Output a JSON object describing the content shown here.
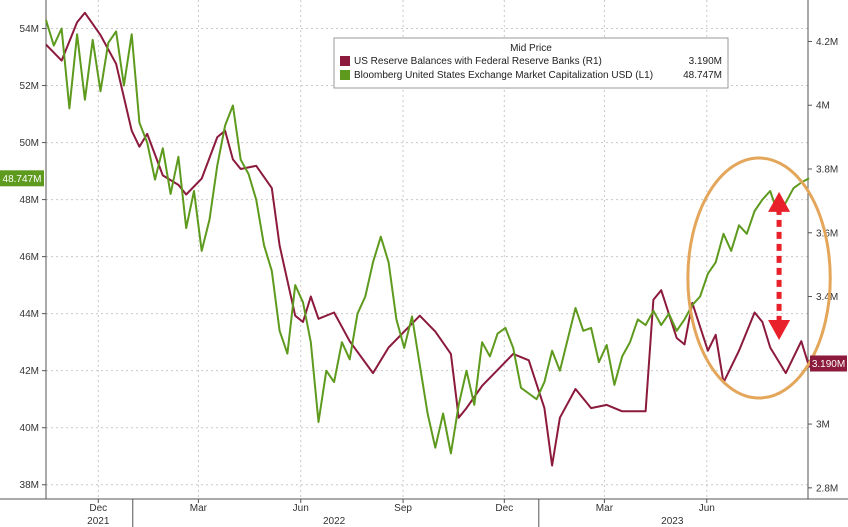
{
  "chart_data": {
    "type": "line",
    "grid": true,
    "legend_position": "top-right",
    "legend": {
      "title": "Mid Price",
      "entries": [
        {
          "label": "US Reserve Balances with Federal Reserve Banks  (R1)",
          "value_label": "3.190M",
          "color": "#8b1a3c"
        },
        {
          "label": "Bloomberg United States Exchange Market Capitalization USD  (L1)",
          "value_label": "48.747M",
          "color": "#5e9a1e"
        }
      ]
    },
    "left_axis": {
      "range": [
        37.5,
        55.0
      ],
      "ticks": [
        38,
        40,
        42,
        44,
        46,
        48,
        50,
        52,
        54
      ],
      "tick_labels": [
        "38M",
        "40M",
        "42M",
        "44M",
        "46M",
        "48M",
        "50M",
        "52M",
        "54M"
      ],
      "last_value_tag": {
        "value": 48.747,
        "label": "48.747M",
        "color": "#5e9a1e"
      }
    },
    "right_axis": {
      "range": [
        2.765,
        4.33
      ],
      "ticks": [
        2.8,
        3.0,
        3.2,
        3.4,
        3.6,
        3.8,
        4.0,
        4.2
      ],
      "tick_labels": [
        "2.8M",
        "3M",
        "3.2M",
        "3.4M",
        "3.6M",
        "3.8M",
        "4M",
        "4.2M"
      ],
      "last_value_tag": {
        "value": 3.19,
        "label": "3.190M",
        "color": "#8b1a3c"
      }
    },
    "x_axis": {
      "range": [
        "2021-10-15",
        "2023-08-31"
      ],
      "ticks": [
        {
          "date": "2021-12-01",
          "label": "Dec"
        },
        {
          "date": "2022-03-01",
          "label": "Mar"
        },
        {
          "date": "2022-06-01",
          "label": "Jun"
        },
        {
          "date": "2022-09-01",
          "label": "Sep"
        },
        {
          "date": "2022-12-01",
          "label": "Dec"
        },
        {
          "date": "2023-03-01",
          "label": "Mar"
        },
        {
          "date": "2023-06-01",
          "label": "Jun"
        }
      ],
      "years": [
        {
          "date": "2021-12-01",
          "label": "2021"
        },
        {
          "date": "2022-07-01",
          "label": "2022"
        },
        {
          "date": "2023-05-01",
          "label": "2023"
        }
      ],
      "year_boundaries": [
        "2022-01-01",
        "2023-01-01"
      ]
    },
    "series": [
      {
        "name": "US Reserve Balances with Federal Reserve Banks",
        "axis": "right",
        "color": "#8b1a3c",
        "points": [
          [
            "2021-10-15",
            4.19
          ],
          [
            "2021-10-29",
            4.14
          ],
          [
            "2021-11-12",
            4.26
          ],
          [
            "2021-11-19",
            4.29
          ],
          [
            "2021-12-03",
            4.22
          ],
          [
            "2021-12-17",
            4.13
          ],
          [
            "2021-12-31",
            3.92
          ],
          [
            "2022-01-07",
            3.87
          ],
          [
            "2022-01-14",
            3.91
          ],
          [
            "2022-01-28",
            3.78
          ],
          [
            "2022-02-11",
            3.75
          ],
          [
            "2022-02-18",
            3.72
          ],
          [
            "2022-03-04",
            3.77
          ],
          [
            "2022-03-18",
            3.9
          ],
          [
            "2022-03-25",
            3.92
          ],
          [
            "2022-04-01",
            3.83
          ],
          [
            "2022-04-08",
            3.8
          ],
          [
            "2022-04-22",
            3.81
          ],
          [
            "2022-05-06",
            3.74
          ],
          [
            "2022-05-13",
            3.56
          ],
          [
            "2022-05-27",
            3.34
          ],
          [
            "2022-06-03",
            3.32
          ],
          [
            "2022-06-10",
            3.4
          ],
          [
            "2022-06-17",
            3.33
          ],
          [
            "2022-07-01",
            3.35
          ],
          [
            "2022-07-15",
            3.26
          ],
          [
            "2022-08-05",
            3.16
          ],
          [
            "2022-08-19",
            3.24
          ],
          [
            "2022-09-02",
            3.29
          ],
          [
            "2022-09-16",
            3.34
          ],
          [
            "2022-09-30",
            3.29
          ],
          [
            "2022-10-14",
            3.22
          ],
          [
            "2022-10-21",
            3.02
          ],
          [
            "2022-10-28",
            3.05
          ],
          [
            "2022-11-11",
            3.12
          ],
          [
            "2022-11-25",
            3.17
          ],
          [
            "2022-12-09",
            3.22
          ],
          [
            "2022-12-23",
            3.2
          ],
          [
            "2023-01-06",
            3.05
          ],
          [
            "2023-01-13",
            2.87
          ],
          [
            "2023-01-20",
            3.02
          ],
          [
            "2023-02-03",
            3.11
          ],
          [
            "2023-02-17",
            3.05
          ],
          [
            "2023-03-03",
            3.06
          ],
          [
            "2023-03-17",
            3.04
          ],
          [
            "2023-04-07",
            3.04
          ],
          [
            "2023-04-14",
            3.39
          ],
          [
            "2023-04-21",
            3.42
          ],
          [
            "2023-05-05",
            3.27
          ],
          [
            "2023-05-12",
            3.25
          ],
          [
            "2023-05-19",
            3.38
          ],
          [
            "2023-06-02",
            3.23
          ],
          [
            "2023-06-09",
            3.28
          ],
          [
            "2023-06-16",
            3.13
          ],
          [
            "2023-06-30",
            3.23
          ],
          [
            "2023-07-14",
            3.35
          ],
          [
            "2023-07-21",
            3.32
          ],
          [
            "2023-07-28",
            3.24
          ],
          [
            "2023-08-11",
            3.16
          ],
          [
            "2023-08-25",
            3.26
          ],
          [
            "2023-09-01",
            3.18
          ],
          [
            "2023-09-15",
            3.19
          ]
        ]
      },
      {
        "name": "Bloomberg United States Exchange Market Capitalization USD",
        "axis": "left",
        "color": "#5e9a1e",
        "points": [
          [
            "2021-10-15",
            54.3
          ],
          [
            "2021-10-22",
            53.4
          ],
          [
            "2021-10-29",
            54.0
          ],
          [
            "2021-11-05",
            51.2
          ],
          [
            "2021-11-12",
            53.8
          ],
          [
            "2021-11-19",
            51.5
          ],
          [
            "2021-11-26",
            53.6
          ],
          [
            "2021-12-03",
            51.8
          ],
          [
            "2021-12-10",
            53.5
          ],
          [
            "2021-12-17",
            53.9
          ],
          [
            "2021-12-24",
            52.0
          ],
          [
            "2021-12-31",
            53.8
          ],
          [
            "2022-01-07",
            50.7
          ],
          [
            "2022-01-14",
            50.0
          ],
          [
            "2022-01-21",
            48.7
          ],
          [
            "2022-01-28",
            49.8
          ],
          [
            "2022-02-04",
            48.2
          ],
          [
            "2022-02-11",
            49.5
          ],
          [
            "2022-02-18",
            47.0
          ],
          [
            "2022-02-25",
            48.3
          ],
          [
            "2022-03-04",
            46.2
          ],
          [
            "2022-03-11",
            47.3
          ],
          [
            "2022-03-18",
            49.2
          ],
          [
            "2022-03-25",
            50.6
          ],
          [
            "2022-04-01",
            51.3
          ],
          [
            "2022-04-08",
            49.4
          ],
          [
            "2022-04-15",
            48.9
          ],
          [
            "2022-04-22",
            48.0
          ],
          [
            "2022-04-29",
            46.4
          ],
          [
            "2022-05-06",
            45.5
          ],
          [
            "2022-05-13",
            43.4
          ],
          [
            "2022-05-20",
            42.6
          ],
          [
            "2022-05-27",
            45.0
          ],
          [
            "2022-06-03",
            44.4
          ],
          [
            "2022-06-10",
            43.0
          ],
          [
            "2022-06-17",
            40.2
          ],
          [
            "2022-06-24",
            42.0
          ],
          [
            "2022-07-01",
            41.6
          ],
          [
            "2022-07-08",
            43.0
          ],
          [
            "2022-07-15",
            42.4
          ],
          [
            "2022-07-22",
            44.0
          ],
          [
            "2022-07-29",
            44.6
          ],
          [
            "2022-08-05",
            45.8
          ],
          [
            "2022-08-12",
            46.7
          ],
          [
            "2022-08-19",
            45.8
          ],
          [
            "2022-08-26",
            43.8
          ],
          [
            "2022-09-02",
            42.8
          ],
          [
            "2022-09-09",
            43.9
          ],
          [
            "2022-09-16",
            42.2
          ],
          [
            "2022-09-23",
            40.5
          ],
          [
            "2022-09-30",
            39.3
          ],
          [
            "2022-10-07",
            40.5
          ],
          [
            "2022-10-14",
            39.1
          ],
          [
            "2022-10-21",
            40.8
          ],
          [
            "2022-10-28",
            42.0
          ],
          [
            "2022-11-04",
            40.8
          ],
          [
            "2022-11-11",
            43.0
          ],
          [
            "2022-11-18",
            42.5
          ],
          [
            "2022-11-25",
            43.3
          ],
          [
            "2022-12-02",
            43.5
          ],
          [
            "2022-12-09",
            42.8
          ],
          [
            "2022-12-16",
            41.4
          ],
          [
            "2022-12-23",
            41.2
          ],
          [
            "2022-12-30",
            41.0
          ],
          [
            "2023-01-06",
            41.6
          ],
          [
            "2023-01-13",
            42.7
          ],
          [
            "2023-01-20",
            42.0
          ],
          [
            "2023-01-27",
            43.1
          ],
          [
            "2023-02-03",
            44.2
          ],
          [
            "2023-02-10",
            43.4
          ],
          [
            "2023-02-17",
            43.5
          ],
          [
            "2023-02-24",
            42.3
          ],
          [
            "2023-03-03",
            42.9
          ],
          [
            "2023-03-10",
            41.5
          ],
          [
            "2023-03-17",
            42.5
          ],
          [
            "2023-03-24",
            43.0
          ],
          [
            "2023-03-31",
            43.8
          ],
          [
            "2023-04-07",
            43.6
          ],
          [
            "2023-04-14",
            44.1
          ],
          [
            "2023-04-21",
            43.6
          ],
          [
            "2023-04-28",
            44.0
          ],
          [
            "2023-05-05",
            43.4
          ],
          [
            "2023-05-12",
            43.8
          ],
          [
            "2023-05-19",
            44.3
          ],
          [
            "2023-05-26",
            44.6
          ],
          [
            "2023-06-02",
            45.4
          ],
          [
            "2023-06-09",
            45.8
          ],
          [
            "2023-06-16",
            46.8
          ],
          [
            "2023-06-23",
            46.2
          ],
          [
            "2023-06-30",
            47.1
          ],
          [
            "2023-07-07",
            46.8
          ],
          [
            "2023-07-14",
            47.6
          ],
          [
            "2023-07-21",
            48.0
          ],
          [
            "2023-07-28",
            48.3
          ],
          [
            "2023-08-04",
            47.5
          ],
          [
            "2023-08-11",
            47.9
          ],
          [
            "2023-08-18",
            48.4
          ],
          [
            "2023-08-25",
            48.6
          ],
          [
            "2023-09-01",
            48.747
          ]
        ]
      }
    ],
    "annotations": [
      {
        "type": "ellipse",
        "start": "2023-05-15",
        "end": "2023-09-20",
        "color": "#e3a65a"
      },
      {
        "type": "double-arrow",
        "date": "2023-08-05",
        "from_left_value": 48.2,
        "to_right_value": 3.27,
        "style": "dashed",
        "color": "#e8202a"
      }
    ]
  }
}
